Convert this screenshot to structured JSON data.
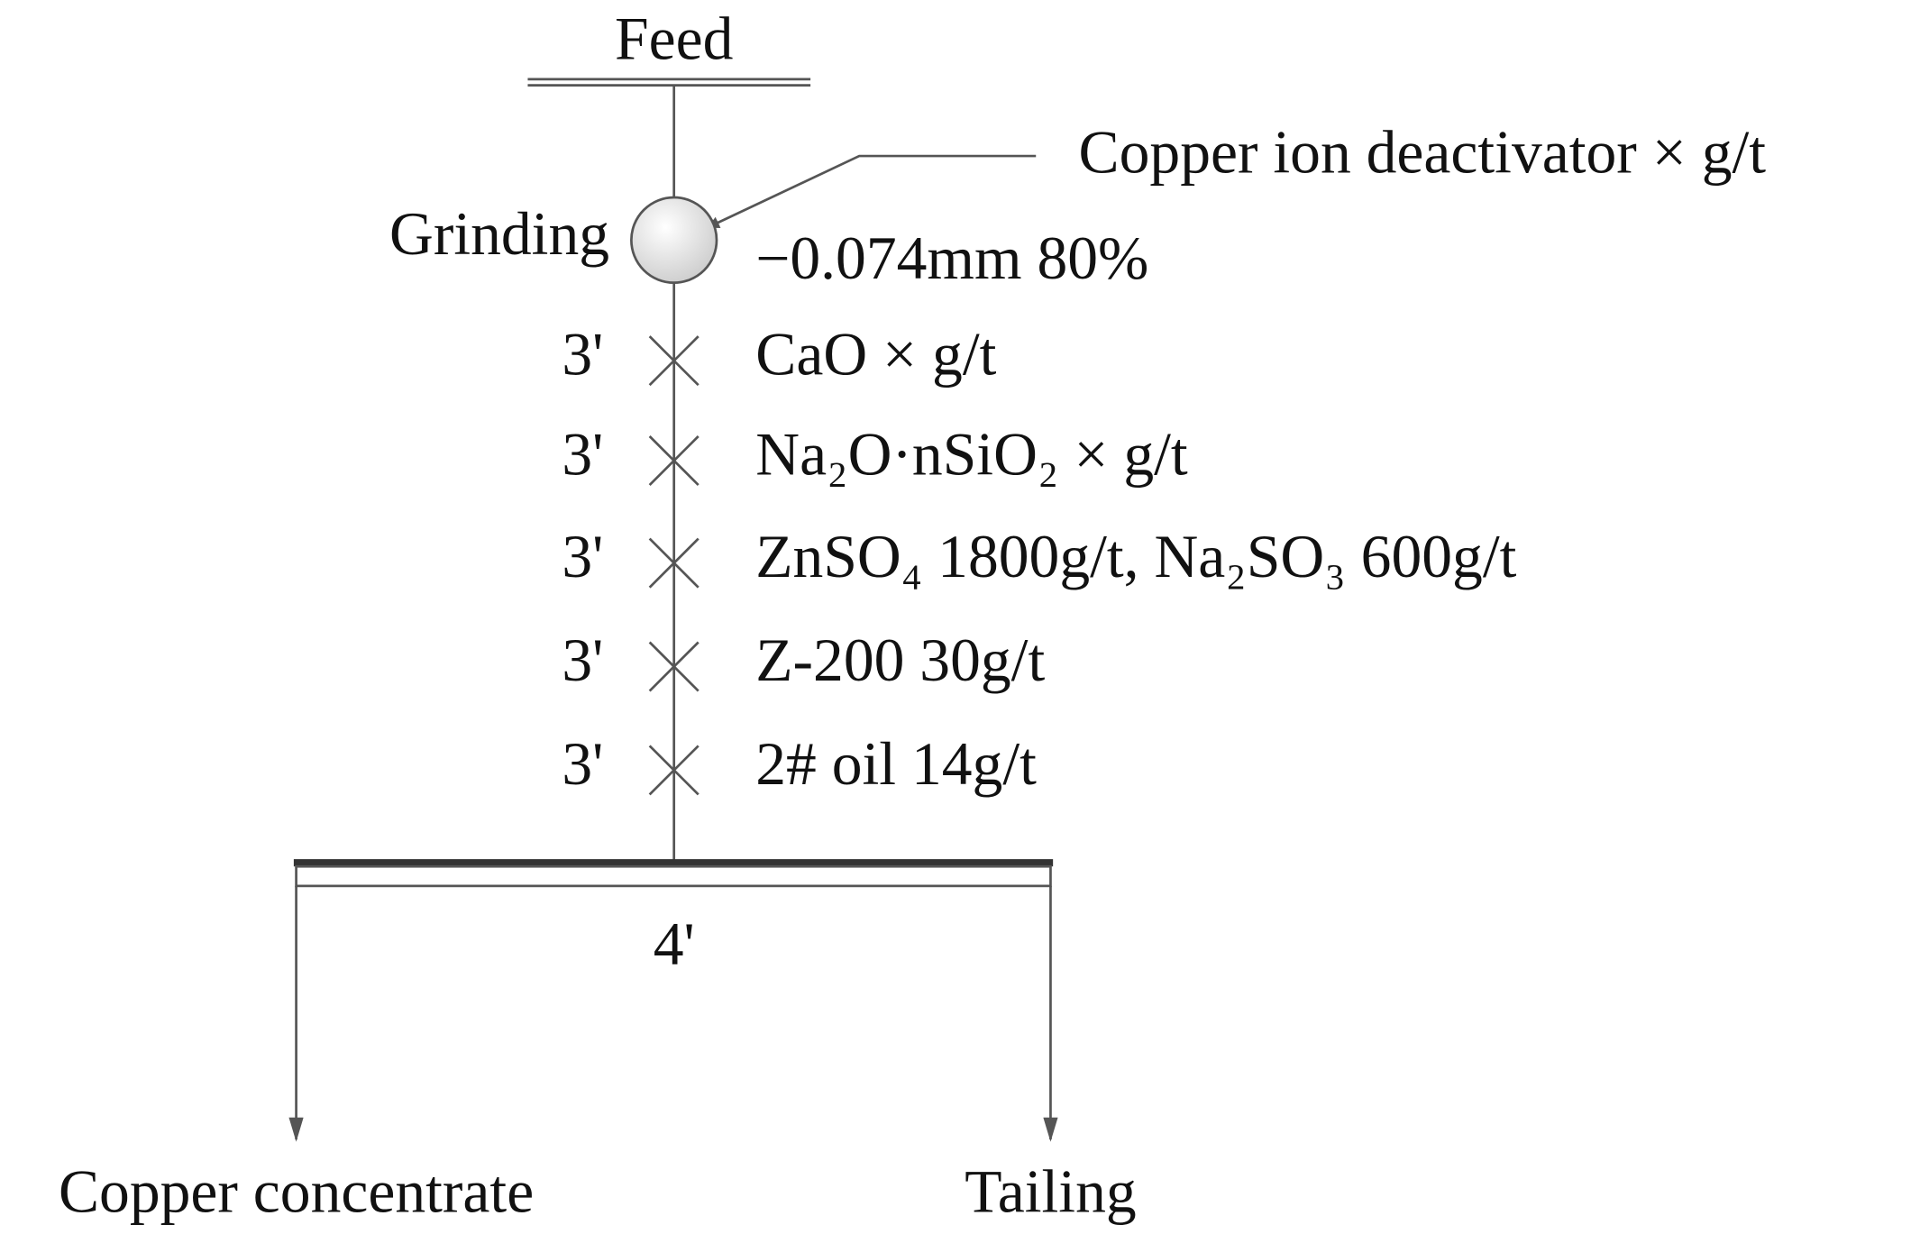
{
  "title": "Feed",
  "grinding": {
    "label": "Grinding",
    "reagent": "Copper ion deactivator × g/t",
    "fineness": "−0.074mm 80%"
  },
  "stages": [
    {
      "time": "3'",
      "reagent": "CaO × g/t"
    },
    {
      "time": "3'",
      "reagent": "Na₂O·nSiO₂ × g/t"
    },
    {
      "time": "3'",
      "reagent": "ZnSO₄ 1800g/t, Na₂SO₃ 600g/t"
    },
    {
      "time": "3'",
      "reagent": "Z-200 30g/t"
    },
    {
      "time": "3'",
      "reagent": "2# oil 14g/t"
    }
  ],
  "flotation": {
    "time": "4'"
  },
  "products": [
    "Copper concentrate",
    "Tailing"
  ]
}
